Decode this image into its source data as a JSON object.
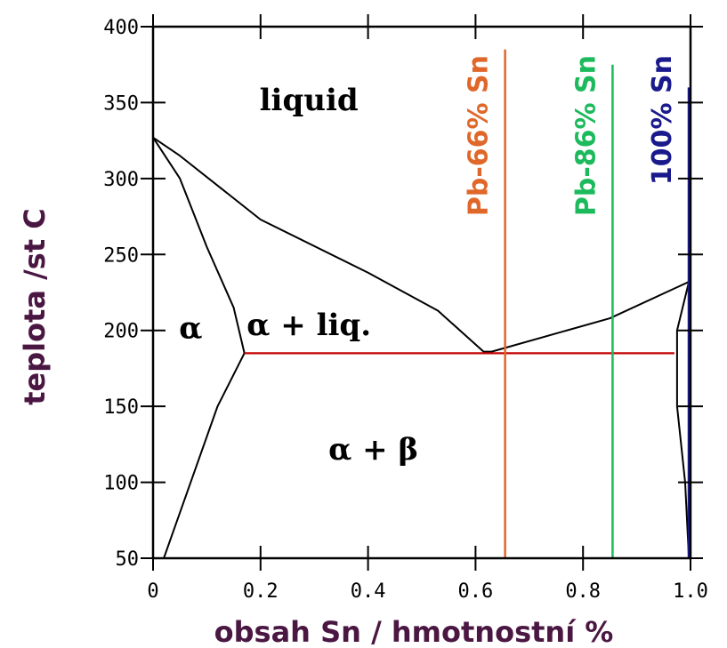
{
  "chart_data": {
    "type": "line",
    "title": "",
    "xlabel": "obsah Sn / hmotnostní  %",
    "ylabel": "teplota /st C",
    "xlim": [
      0,
      1.0
    ],
    "ylim": [
      50,
      400
    ],
    "x_ticks": [
      0,
      0.2,
      0.4,
      0.6,
      0.8,
      1.0
    ],
    "x_tick_labels": [
      "0",
      "0.2",
      "0.4",
      "0.6",
      "0.8",
      "1.0"
    ],
    "y_ticks": [
      50,
      100,
      150,
      200,
      250,
      300,
      350,
      400
    ],
    "y_tick_labels": [
      "50",
      "100",
      "150",
      "200",
      "250",
      "300",
      "350",
      "400"
    ],
    "grid": false,
    "regions": [
      {
        "label": "liquid",
        "x": 0.29,
        "y": 345
      },
      {
        "label": "α",
        "x": 0.07,
        "y": 195
      },
      {
        "label": "α + liq.",
        "x": 0.29,
        "y": 197
      },
      {
        "label": "α + β",
        "x": 0.41,
        "y": 115
      }
    ],
    "series": [
      {
        "role": "liquidus",
        "color": "#000000",
        "x": [
          0,
          0.05,
          0.2,
          0.4,
          0.53,
          0.615,
          0.63,
          0.85,
          0.997
        ],
        "y": [
          327,
          315,
          273,
          238,
          213,
          186,
          186,
          208,
          232
        ]
      },
      {
        "role": "solidus-alpha",
        "color": "#000000",
        "x": [
          0,
          0.05,
          0.1,
          0.15,
          0.17
        ],
        "y": [
          327,
          300,
          255,
          215,
          185
        ]
      },
      {
        "role": "solvus-alpha",
        "color": "#000000",
        "x": [
          0.17,
          0.12,
          0.07,
          0.04,
          0.02
        ],
        "y": [
          185,
          150,
          100,
          70,
          50
        ]
      },
      {
        "role": "beta-boundary",
        "color": "#000000",
        "x": [
          0.997,
          0.975,
          0.975,
          0.99,
          0.997
        ],
        "y": [
          232,
          200,
          150,
          100,
          50
        ]
      },
      {
        "role": "eutectic",
        "color": "#c40000",
        "x": [
          0.17,
          0.97
        ],
        "y": [
          185,
          185
        ]
      }
    ],
    "compositions": [
      {
        "label": "Pb-66% Sn",
        "x": 0.655,
        "y_top": 385,
        "color": "#e0672a"
      },
      {
        "label": "Pb-86% Sn",
        "x": 0.855,
        "y_top": 375,
        "color": "#1cba5c"
      },
      {
        "label": "100% Sn",
        "x": 1.0,
        "y_top": 360,
        "color": "#1a1a8c"
      }
    ]
  }
}
